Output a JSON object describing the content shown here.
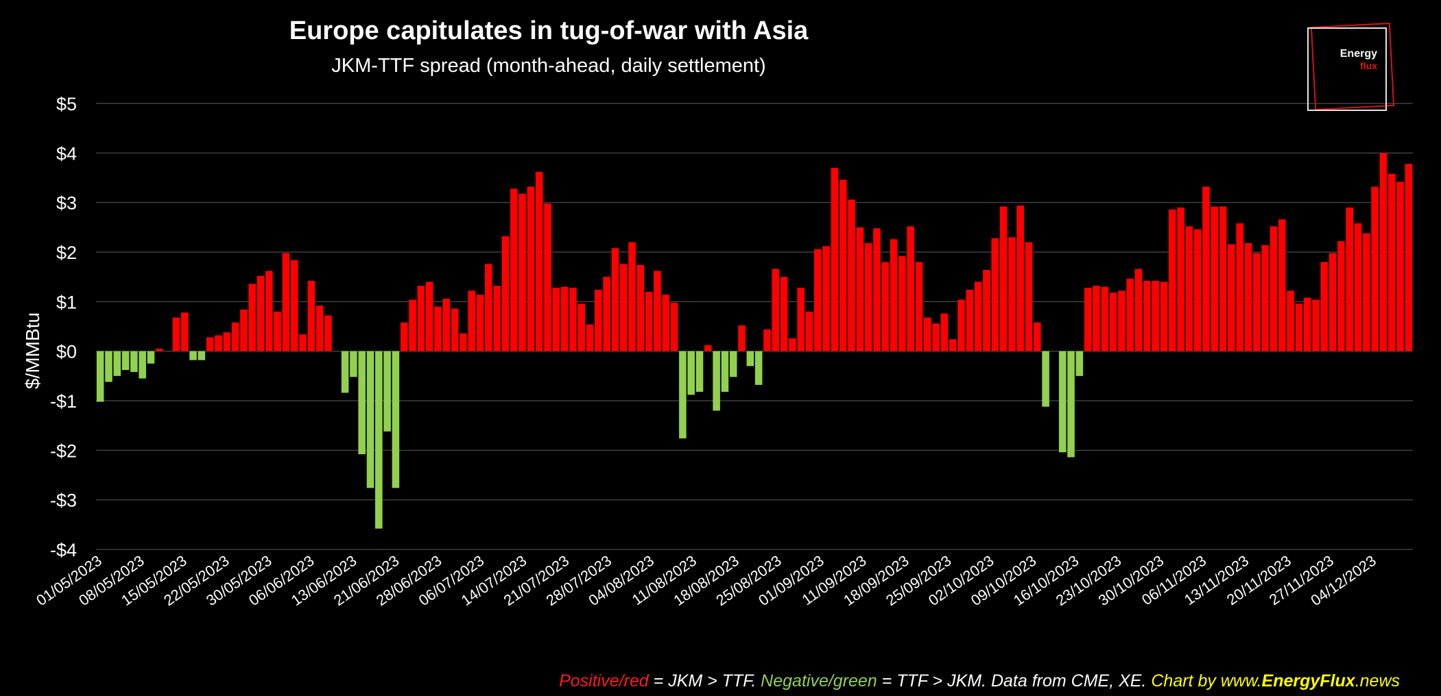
{
  "header": {
    "title": "Europe capitulates in tug-of-war with Asia",
    "subtitle": "JKM-TTF spread (month-ahead, daily settlement)"
  },
  "logo": {
    "line1": "Energy",
    "line2": "flux"
  },
  "footer": {
    "part1": "Positive/red",
    "part2": " = JKM > TTF. ",
    "part3": "Negative/green",
    "part4": " = TTF > JKM. Data from CME, XE. ",
    "part5": "Chart by www.",
    "part6": "EnergyFlux",
    "part7": ".news"
  },
  "colors": {
    "positive": "#ff0000",
    "negative": "#92d050",
    "background": "#000000",
    "grid": "#404040"
  },
  "chart_data": {
    "type": "bar",
    "title": "Europe capitulates in tug-of-war with Asia",
    "subtitle": "JKM-TTF spread (month-ahead, daily settlement)",
    "ylabel": "$/MMBtu",
    "ylim": [
      -4,
      5
    ],
    "yticks": [
      5,
      4,
      3,
      2,
      1,
      0,
      -1,
      -2,
      -3,
      -4
    ],
    "ytick_labels": [
      "$5",
      "$4",
      "$3",
      "$2",
      "$1",
      "$0",
      "-$1",
      "-$2",
      "-$3",
      "-$4"
    ],
    "xtick_labels": [
      "01/05/2023",
      "08/05/2023",
      "15/05/2023",
      "22/05/2023",
      "30/05/2023",
      "06/06/2023",
      "13/06/2023",
      "21/06/2023",
      "28/06/2023",
      "06/07/2023",
      "14/07/2023",
      "21/07/2023",
      "28/07/2023",
      "04/08/2023",
      "11/08/2023",
      "18/08/2023",
      "25/08/2023",
      "01/09/2023",
      "11/09/2023",
      "18/09/2023",
      "25/09/2023",
      "02/10/2023",
      "09/10/2023",
      "16/10/2023",
      "23/10/2023",
      "30/10/2023",
      "06/11/2023",
      "13/11/2023",
      "20/11/2023",
      "27/11/2023",
      "04/12/2023"
    ],
    "grid": true,
    "legend": "none",
    "values": [
      -1.02,
      -0.62,
      -0.5,
      -0.38,
      -0.42,
      -0.55,
      -0.25,
      0.05,
      0,
      0.68,
      0.78,
      -0.18,
      -0.18,
      0.28,
      0.32,
      0.38,
      0.58,
      0.84,
      1.36,
      1.52,
      1.62,
      0.8,
      1.98,
      1.84,
      0.34,
      1.42,
      0.92,
      0.72,
      0,
      -0.84,
      -0.52,
      -2.08,
      -2.76,
      -3.58,
      -1.62,
      -2.76,
      0.58,
      1.04,
      1.32,
      1.4,
      0.9,
      1.06,
      0.86,
      0.36,
      1.22,
      1.14,
      1.76,
      1.32,
      2.32,
      3.28,
      3.18,
      3.32,
      3.62,
      2.98,
      1.28,
      1.3,
      1.28,
      0.96,
      0.54,
      1.24,
      1.5,
      2.08,
      1.76,
      2.2,
      1.74,
      1.2,
      1.62,
      1.14,
      0.98,
      -1.76,
      -0.88,
      -0.82,
      0.12,
      -1.2,
      -0.82,
      -0.52,
      0.52,
      -0.3,
      -0.68,
      0.44,
      1.66,
      1.5,
      0.26,
      1.28,
      0.8,
      2.06,
      2.12,
      3.7,
      3.46,
      3.06,
      2.5,
      2.18,
      2.48,
      1.8,
      2.26,
      1.92,
      2.52,
      1.8,
      0.68,
      0.56,
      0.76,
      0.24,
      1.04,
      1.24,
      1.4,
      1.64,
      2.28,
      2.92,
      2.3,
      2.94,
      2.2,
      0.58,
      -1.12,
      0,
      -2.04,
      -2.14,
      -0.5,
      1.28,
      1.32,
      1.3,
      1.18,
      1.22,
      1.46,
      1.66,
      1.42,
      1.42,
      1.4,
      2.86,
      2.9,
      2.52,
      2.46,
      3.32,
      2.92,
      2.92,
      2.16,
      2.58,
      2.18,
      1.98,
      2.14,
      2.52,
      2.66,
      1.22,
      0.96,
      1.08,
      1.04,
      1.8,
      1.98,
      2.22,
      2.9,
      2.58,
      2.38,
      3.32,
      4.0,
      3.58,
      3.42,
      3.78
    ]
  }
}
